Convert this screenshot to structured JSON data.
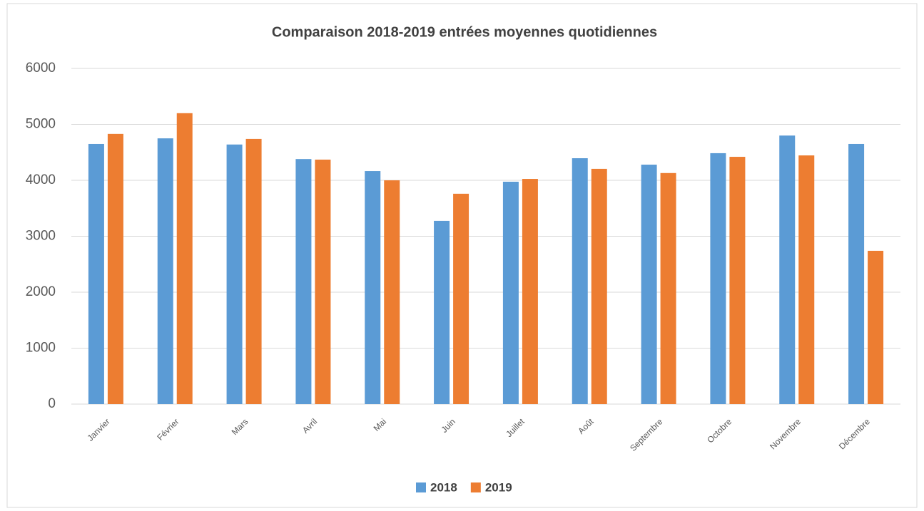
{
  "chart_data": {
    "type": "bar",
    "title": "Comparaison  2018-2019 entrées moyennes quotidiennes",
    "categories": [
      "Janvier",
      "Février",
      "Mars",
      "Avril",
      "Mai",
      "Juin",
      "Juillet",
      "Août",
      "Septembre",
      "Octobre",
      "Novembre",
      "Décembre"
    ],
    "series": [
      {
        "name": "2018",
        "color": "#5b9bd5",
        "values": [
          4650,
          4750,
          4640,
          4380,
          4165,
          3275,
          3975,
          4395,
          4280,
          4485,
          4800,
          4650
        ]
      },
      {
        "name": "2019",
        "color": "#ed7d31",
        "values": [
          4830,
          5200,
          4740,
          4370,
          4000,
          3760,
          4025,
          4205,
          4130,
          4420,
          4445,
          2740
        ]
      }
    ],
    "ylim": [
      0,
      6000
    ],
    "yticks": [
      0,
      1000,
      2000,
      3000,
      4000,
      5000,
      6000
    ],
    "grid": true,
    "legend": "bottom"
  }
}
